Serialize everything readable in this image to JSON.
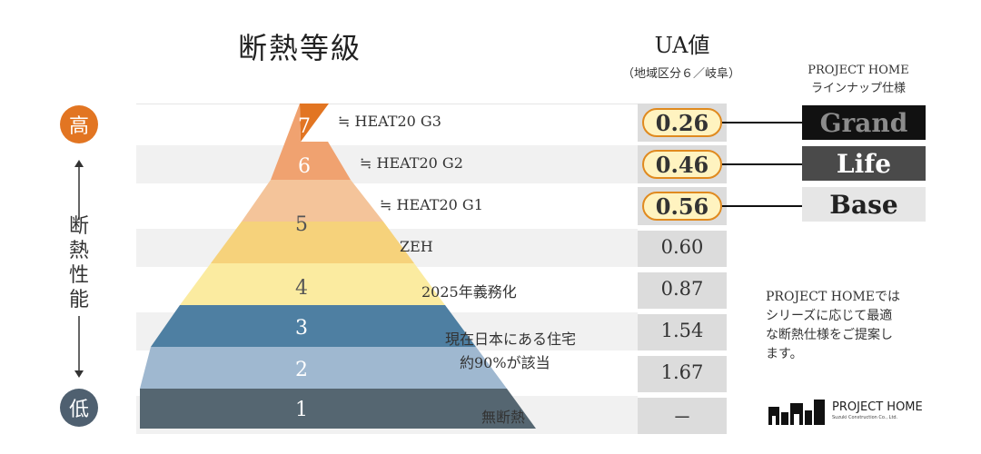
{
  "header": {
    "title": "断熱等級",
    "ua_title": "UA値",
    "ua_subtitle": "（地域区分６／岐阜）",
    "project_line1": "PROJECT HOME",
    "project_line2": "ラインナップ仕様"
  },
  "side_scale": {
    "high": "高",
    "low": "低",
    "chars": [
      "断",
      "熱",
      "性",
      "能"
    ],
    "high_color": "#e27522",
    "low_color": "#4f6070"
  },
  "levels": {
    "g7": {
      "number": "7",
      "color": "#e27522"
    },
    "g6": {
      "number": "6",
      "color": "#f0a270"
    },
    "g5": {
      "number": "5",
      "color": "#f4c49a"
    },
    "g4": {
      "number": "4",
      "color": "#fbeba0"
    },
    "g3": {
      "number": "3",
      "color": "#4e7fa2"
    },
    "g2": {
      "number": "2",
      "color": "#9fb8d0"
    },
    "g1": {
      "number": "1",
      "color": "#556671"
    },
    "zeh_color": "#f6d27b"
  },
  "rows": [
    {
      "label": "≒ HEAT20 G3",
      "ua": "0.26",
      "highlight": true
    },
    {
      "label": "≒ HEAT20 G2",
      "ua": "0.46",
      "highlight": true
    },
    {
      "label": "≒ HEAT20 G1",
      "ua": "0.56",
      "highlight": true
    },
    {
      "label": "ZEH",
      "ua": "0.60",
      "highlight": false
    },
    {
      "label": "2025年義務化",
      "ua": "0.87",
      "highlight": false
    },
    {
      "label_line1": "現在日本にある住宅",
      "label_line2": "約90%が該当",
      "ua": "1.54",
      "highlight": false
    },
    {
      "ua": "1.67",
      "highlight": false
    },
    {
      "label": "無断熱",
      "ua": "－",
      "highlight": false
    }
  ],
  "lineup": [
    {
      "name": "Grand",
      "bg": "#111111",
      "fg": "#8c8c8c"
    },
    {
      "name": "Life",
      "bg": "#4a4a4a",
      "fg": "#ffffff"
    },
    {
      "name": "Base",
      "bg": "#e6e6e6",
      "fg": "#222222"
    }
  ],
  "note": {
    "line1": "PROJECT HOMEでは",
    "line2": "シリーズに応じて最適",
    "line3": "な断熱仕様をご提案し",
    "line4": "ます。"
  },
  "logo": {
    "name": "PROJECT HOME",
    "sub": "Suzuki Construction Co., Ltd."
  }
}
